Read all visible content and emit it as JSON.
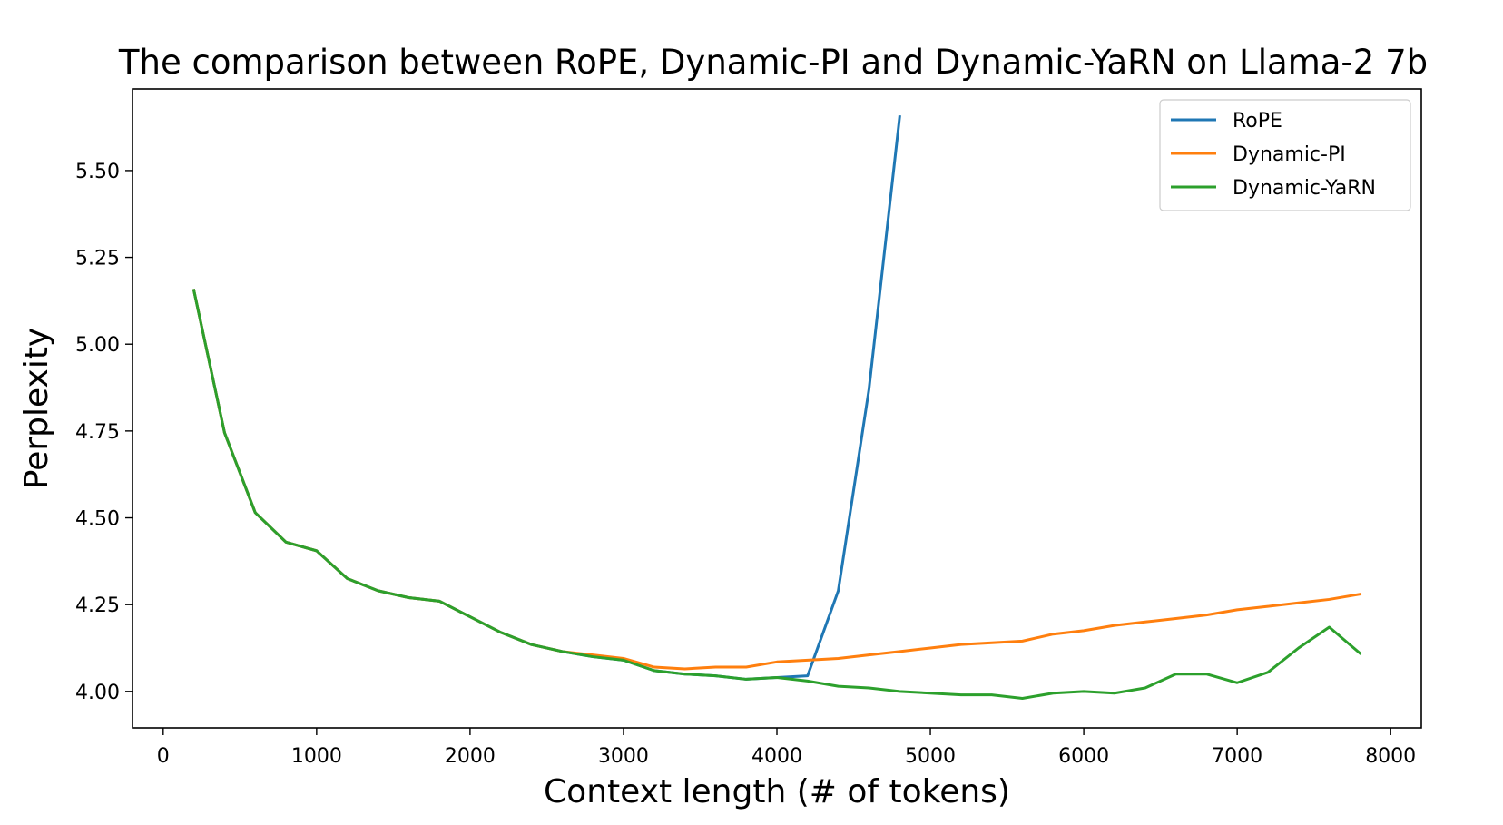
{
  "chart_data": {
    "type": "line",
    "title": "The comparison between RoPE, Dynamic-PI and Dynamic-YaRN on Llama-2 7b",
    "xlabel": "Context length (# of tokens)",
    "ylabel": "Perplexity",
    "xlim": [
      -200,
      8200
    ],
    "ylim": [
      3.895,
      5.735
    ],
    "x_ticks": [
      0,
      1000,
      2000,
      3000,
      4000,
      5000,
      6000,
      7000,
      8000
    ],
    "x_tick_labels": [
      "0",
      "1000",
      "2000",
      "3000",
      "4000",
      "5000",
      "6000",
      "7000",
      "8000"
    ],
    "y_ticks": [
      4.0,
      4.25,
      4.5,
      4.75,
      5.0,
      5.25,
      5.5
    ],
    "y_tick_labels": [
      "4.00",
      "4.25",
      "4.50",
      "4.75",
      "5.00",
      "5.25",
      "5.50"
    ],
    "grid": false,
    "legend_position": "top-right",
    "series": [
      {
        "name": "RoPE",
        "color": "#1f77b4",
        "x": [
          200,
          400,
          600,
          800,
          1000,
          1200,
          1400,
          1600,
          1800,
          2000,
          2200,
          2400,
          2600,
          2800,
          3000,
          3200,
          3400,
          3600,
          3800,
          4000,
          4200,
          4400,
          4600,
          4800
        ],
        "y": [
          5.155,
          4.745,
          4.515,
          4.43,
          4.405,
          4.325,
          4.29,
          4.27,
          4.26,
          4.215,
          4.17,
          4.135,
          4.115,
          4.1,
          4.09,
          4.06,
          4.05,
          4.045,
          4.035,
          4.04,
          4.045,
          4.29,
          4.87,
          5.655
        ]
      },
      {
        "name": "Dynamic-PI",
        "color": "#ff7f0e",
        "x": [
          200,
          400,
          600,
          800,
          1000,
          1200,
          1400,
          1600,
          1800,
          2000,
          2200,
          2400,
          2600,
          2800,
          3000,
          3200,
          3400,
          3600,
          3800,
          4000,
          4200,
          4400,
          4600,
          4800,
          5000,
          5200,
          5400,
          5600,
          5800,
          6000,
          6200,
          6400,
          6600,
          6800,
          7000,
          7200,
          7400,
          7600,
          7800
        ],
        "y": [
          5.155,
          4.745,
          4.515,
          4.43,
          4.405,
          4.325,
          4.29,
          4.27,
          4.26,
          4.215,
          4.17,
          4.135,
          4.115,
          4.105,
          4.095,
          4.07,
          4.065,
          4.07,
          4.07,
          4.085,
          4.09,
          4.095,
          4.105,
          4.115,
          4.125,
          4.135,
          4.14,
          4.145,
          4.165,
          4.175,
          4.19,
          4.2,
          4.21,
          4.22,
          4.235,
          4.245,
          4.255,
          4.265,
          4.28
        ]
      },
      {
        "name": "Dynamic-YaRN",
        "color": "#2ca02c",
        "x": [
          200,
          400,
          600,
          800,
          1000,
          1200,
          1400,
          1600,
          1800,
          2000,
          2200,
          2400,
          2600,
          2800,
          3000,
          3200,
          3400,
          3600,
          3800,
          4000,
          4200,
          4400,
          4600,
          4800,
          5000,
          5200,
          5400,
          5600,
          5800,
          6000,
          6200,
          6400,
          6600,
          6800,
          7000,
          7200,
          7400,
          7600,
          7800
        ],
        "y": [
          5.155,
          4.745,
          4.515,
          4.43,
          4.405,
          4.325,
          4.29,
          4.27,
          4.26,
          4.215,
          4.17,
          4.135,
          4.115,
          4.1,
          4.09,
          4.06,
          4.05,
          4.045,
          4.035,
          4.04,
          4.03,
          4.015,
          4.01,
          4.0,
          3.995,
          3.99,
          3.99,
          3.98,
          3.995,
          4.0,
          3.995,
          4.01,
          4.05,
          4.05,
          4.025,
          4.055,
          4.125,
          4.185,
          4.11
        ]
      }
    ]
  }
}
